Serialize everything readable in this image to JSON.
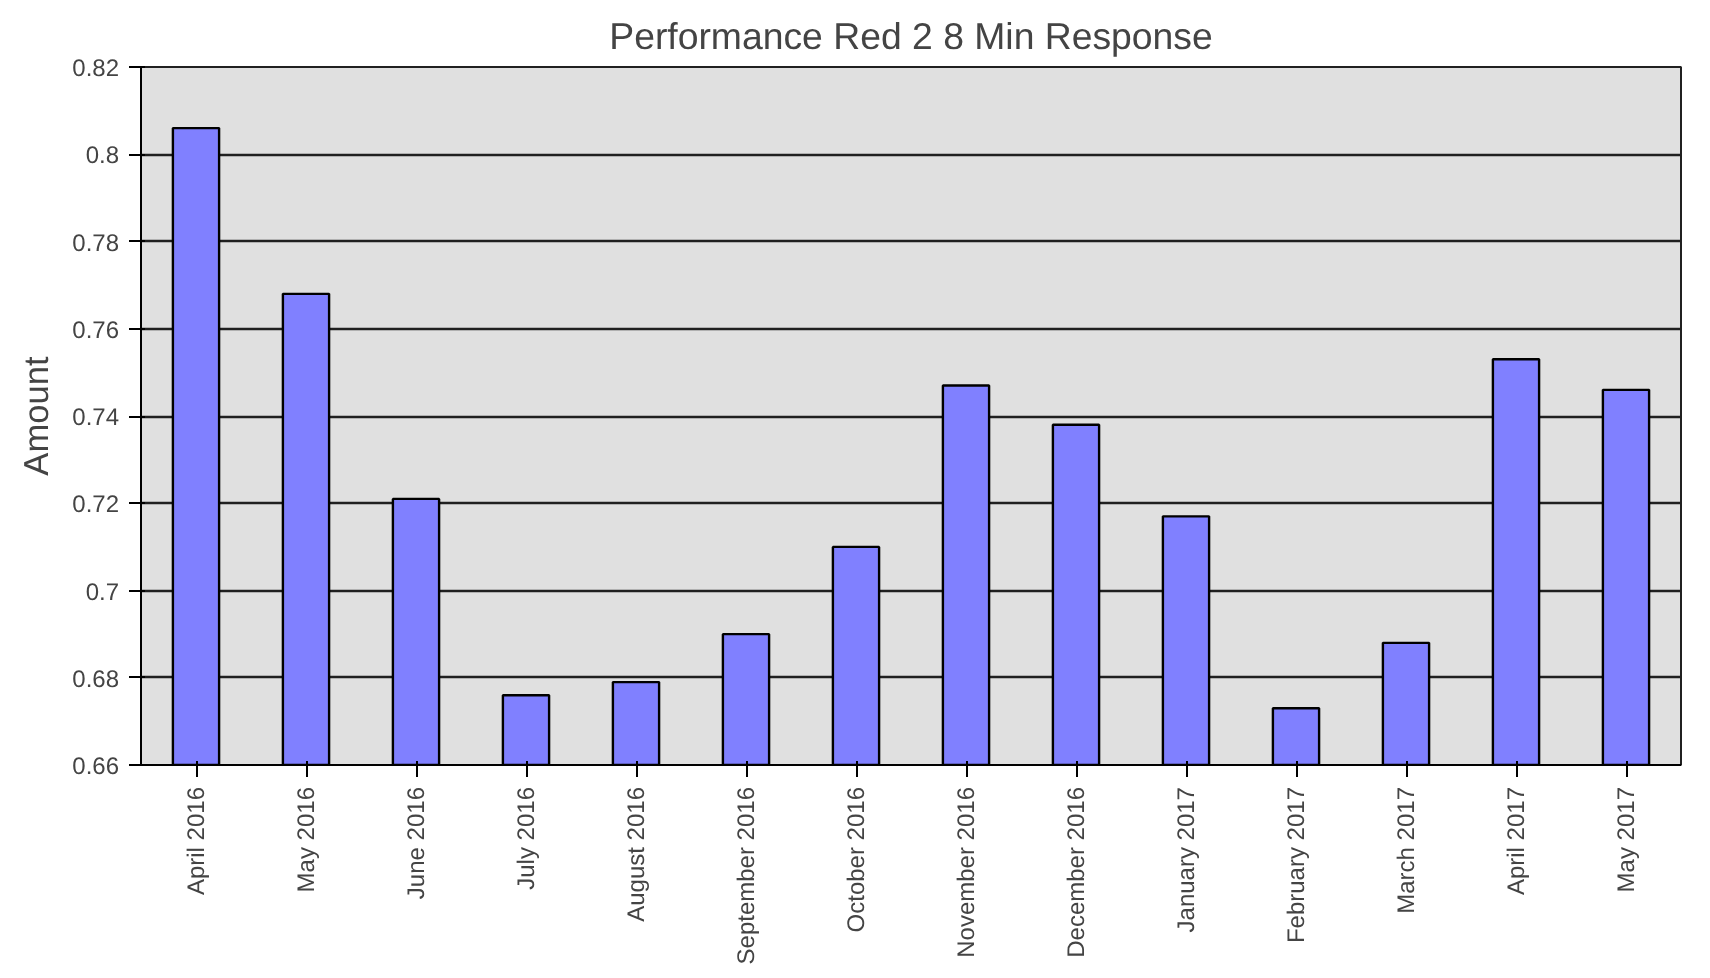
{
  "chart_data": {
    "type": "bar",
    "title": "Performance Red 2 8 Min Response",
    "ylabel": "Amount",
    "categories": [
      "April 2016",
      "May 2016",
      "June 2016",
      "July 2016",
      "August 2016",
      "September 2016",
      "October 2016",
      "November 2016",
      "December 2016",
      "January 2017",
      "February 2017",
      "March 2017",
      "April 2017",
      "May 2017"
    ],
    "values": [
      0.806,
      0.768,
      0.721,
      0.676,
      0.679,
      0.69,
      0.71,
      0.747,
      0.738,
      0.717,
      0.673,
      0.688,
      0.753,
      0.746
    ],
    "color": "#8080ff",
    "ylim": [
      0.66,
      0.82
    ],
    "yticks": [
      0.66,
      0.68,
      0.7,
      0.72,
      0.74,
      0.76,
      0.78,
      0.8,
      0.82
    ],
    "grid": "y"
  }
}
